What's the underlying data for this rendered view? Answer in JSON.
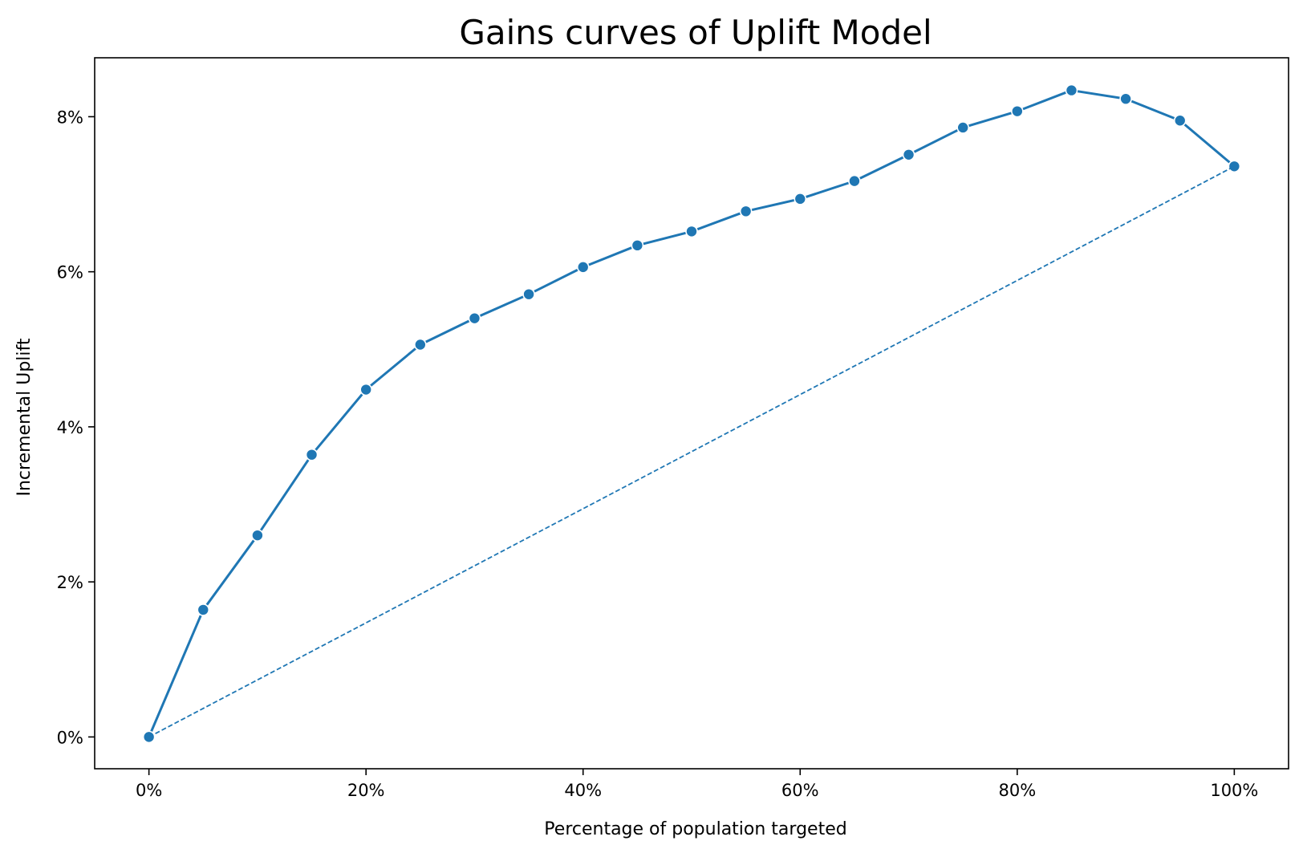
{
  "chart_data": {
    "type": "line",
    "title": "Gains curves of Uplift Model",
    "xlabel": "Percentage of population targeted",
    "ylabel": "Incremental Uplift",
    "xlim": [
      -0.05,
      1.05
    ],
    "ylim": [
      -0.0041,
      0.0876
    ],
    "x_ticks": [
      0.0,
      0.2,
      0.4,
      0.6,
      0.8,
      1.0
    ],
    "x_tick_labels": [
      "0%",
      "20%",
      "40%",
      "60%",
      "80%",
      "100%"
    ],
    "y_ticks": [
      0.0,
      0.02,
      0.04,
      0.06,
      0.08
    ],
    "y_tick_labels": [
      "0%",
      "2%",
      "4%",
      "6%",
      "8%"
    ],
    "grid": false,
    "legend": "none",
    "series": [
      {
        "style": "solid-with-markers",
        "color": "#1f77b4",
        "x": [
          0.0,
          0.05,
          0.1,
          0.15,
          0.2,
          0.25,
          0.3,
          0.35,
          0.4,
          0.45,
          0.5,
          0.55,
          0.6,
          0.65,
          0.7,
          0.75,
          0.8,
          0.85,
          0.9,
          0.95,
          1.0
        ],
        "y": [
          0.0,
          0.0164,
          0.026,
          0.0364,
          0.0448,
          0.0506,
          0.054,
          0.0571,
          0.0606,
          0.0634,
          0.0652,
          0.0678,
          0.0694,
          0.0717,
          0.0751,
          0.0786,
          0.0807,
          0.0834,
          0.0823,
          0.0795,
          0.0736
        ]
      },
      {
        "style": "dashed",
        "color": "#1f77b4",
        "x": [
          0.0,
          1.0
        ],
        "y": [
          0.0,
          0.0736
        ]
      }
    ]
  }
}
